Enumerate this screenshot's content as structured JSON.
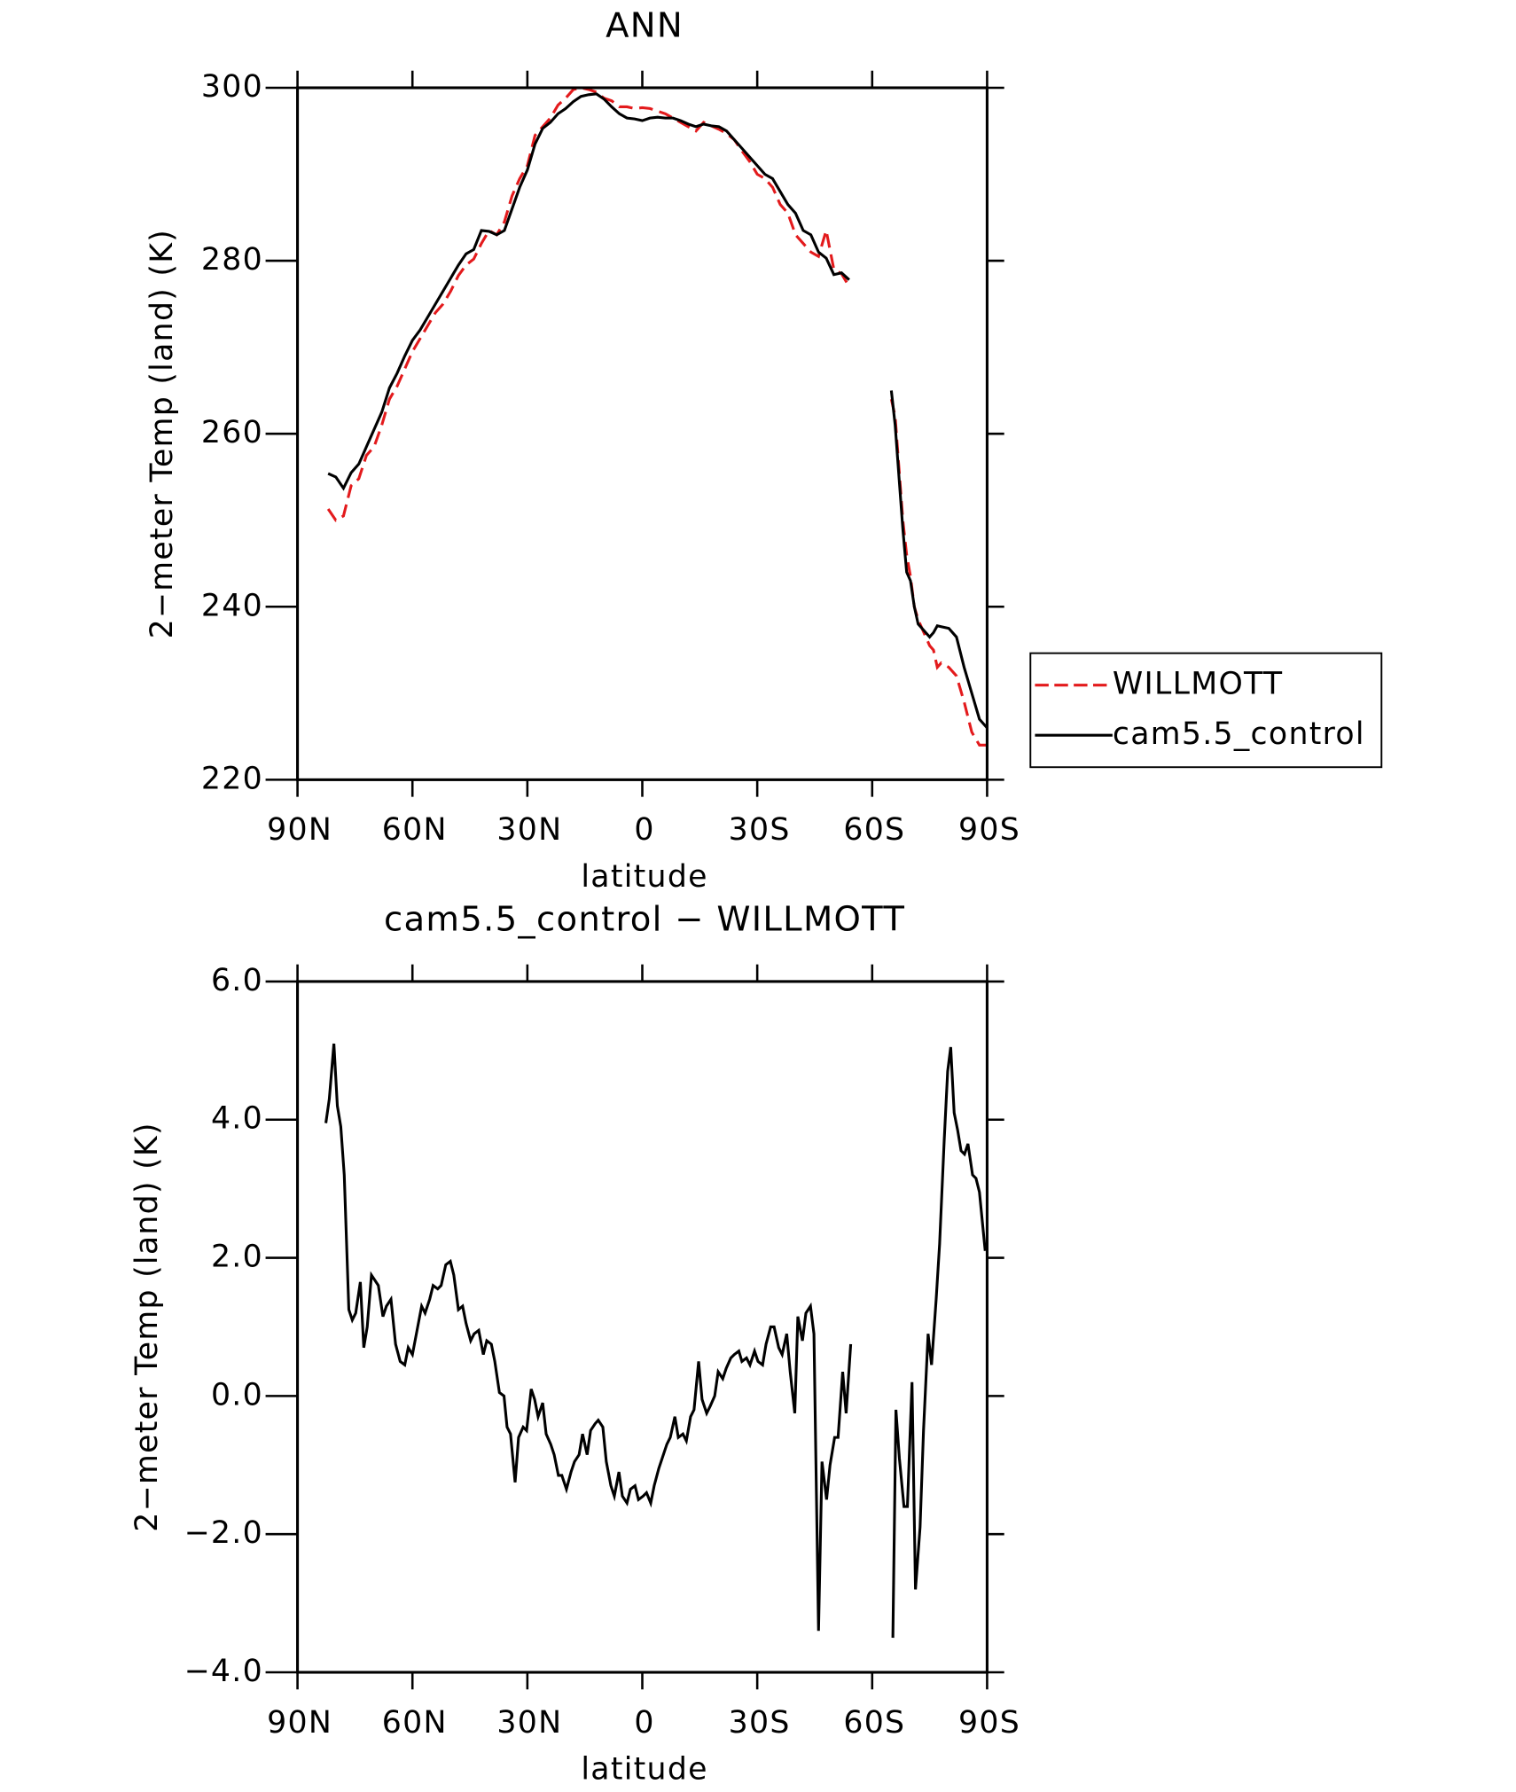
{
  "chart_data": [
    {
      "type": "line",
      "title": "ANN",
      "xlabel": "latitude",
      "ylabel": "2−meter Temp (land) (K)",
      "x": [
        82,
        80,
        78,
        76,
        74,
        72,
        70,
        68,
        66,
        64,
        62,
        60,
        58,
        56,
        54,
        52,
        50,
        48,
        46,
        44,
        42,
        40,
        38,
        36,
        34,
        32,
        30,
        28,
        26,
        24,
        22,
        20,
        18,
        16,
        14,
        12,
        10,
        8,
        6,
        4,
        2,
        0,
        -2,
        -4,
        -6,
        -8,
        -10,
        -12,
        -14,
        -16,
        -18,
        -20,
        -22,
        -24,
        -26,
        -28,
        -30,
        -32,
        -34,
        -36,
        -38,
        -40,
        -42,
        -44,
        -46,
        -48,
        -50,
        -52,
        -54,
        -60,
        -65,
        -66,
        -67,
        -68,
        -69,
        -70,
        -71,
        -72,
        -73,
        -74,
        -75,
        -76,
        -77,
        -78,
        -80,
        -82,
        -84,
        -86,
        -88,
        -90
      ],
      "series": [
        {
          "name": "WILLMOTT",
          "color": "#e31a1c",
          "linestyle": "dashed",
          "values": [
            251.3,
            250,
            250.5,
            254,
            254.8,
            257.5,
            258.5,
            261,
            264,
            265.5,
            267.5,
            269.5,
            271,
            272.5,
            274,
            275,
            276.5,
            278.3,
            279.5,
            280.2,
            282,
            283.5,
            283,
            284.5,
            287.5,
            289.5,
            291,
            294.5,
            295.5,
            296.5,
            298,
            298.8,
            299.8,
            300,
            299.8,
            299.5,
            298.8,
            298.5,
            297.8,
            297.8,
            297.6,
            297.7,
            297.6,
            297.3,
            297,
            296.5,
            296,
            295.5,
            295,
            296,
            295.6,
            295.2,
            294.7,
            294,
            292.7,
            291.5,
            290,
            289.5,
            288.5,
            286.5,
            285.5,
            283,
            282,
            281,
            280.5,
            283.5,
            279,
            278.5,
            277,
            null,
            264,
            262,
            256,
            250,
            246,
            243.5,
            240,
            238.5,
            237.5,
            236.5,
            235.5,
            235,
            233,
            233.5,
            233,
            232,
            229,
            225.5,
            224,
            224
          ]
        },
        {
          "name": "cam5.5_control",
          "color": "#000000",
          "linestyle": "solid",
          "values": [
            255.4,
            255,
            253.7,
            255.5,
            256.5,
            258.5,
            260.5,
            262.5,
            265.3,
            267,
            269,
            270.8,
            272,
            273.5,
            275,
            276.5,
            278,
            279.5,
            280.8,
            281.3,
            283.5,
            283.4,
            283,
            283.5,
            286,
            288.5,
            290.5,
            293.5,
            295.3,
            296,
            297,
            297.6,
            298.4,
            299,
            299.2,
            299.3,
            298.7,
            297.8,
            297,
            296.5,
            296.4,
            296.2,
            296.5,
            296.6,
            296.5,
            296.5,
            296.2,
            295.8,
            295.5,
            295.8,
            295.6,
            295.5,
            295,
            294,
            293,
            292,
            291,
            290,
            289.5,
            288,
            286.5,
            285.5,
            283.5,
            283,
            281,
            280.3,
            278.4,
            278.6,
            277.8,
            null,
            265,
            261,
            255,
            249,
            244,
            243,
            240,
            238,
            237.5,
            237,
            236.5,
            237,
            237.8,
            237.7,
            237.5,
            236.5,
            233,
            230,
            227,
            226
          ]
        }
      ],
      "xlim": [
        90,
        -90
      ],
      "xticks": [
        {
          "value": 90,
          "label": "90N"
        },
        {
          "value": 60,
          "label": "60N"
        },
        {
          "value": 30,
          "label": "30N"
        },
        0,
        {
          "value": -30,
          "label": "30S"
        },
        {
          "value": -60,
          "label": "60S"
        },
        {
          "value": -90,
          "label": "90S"
        }
      ],
      "ylim": [
        220,
        300
      ],
      "yticks": [
        220,
        240,
        260,
        280,
        300
      ],
      "legend": "right"
    },
    {
      "type": "line",
      "title": "cam5.5_control − WILLMOTT",
      "xlabel": "latitude",
      "ylabel": "2−meter Temp (land) (K)",
      "x": [
        82.6,
        81.7,
        80.5,
        79.6,
        78.7,
        77.8,
        76.6,
        75.7,
        74.8,
        73.6,
        72.7,
        71.8,
        70.7,
        68.9,
        67.7,
        66.8,
        65.6,
        64.4,
        63.2,
        62,
        61.1,
        60,
        58.8,
        57.6,
        56.7,
        55.5,
        54.6,
        53.4,
        52.5,
        51.3,
        50.1,
        49.2,
        48,
        46.9,
        46,
        44.8,
        43.9,
        42.7,
        41.5,
        40.6,
        39.4,
        38.5,
        37.3,
        36.1,
        35.3,
        34.4,
        33.2,
        32.3,
        31.1,
        30.2,
        29,
        28.1,
        27.2,
        26,
        25.1,
        23.9,
        23,
        21.9,
        21,
        19.8,
        18.6,
        17.7,
        16.5,
        15.6,
        14.4,
        13.5,
        12.3,
        11.5,
        10.3,
        9.4,
        8.2,
        7.3,
        6.1,
        5.2,
        4,
        3.1,
        1.9,
        1,
        -0.2,
        -1.1,
        -2.2,
        -3.1,
        -4.3,
        -5.2,
        -6.4,
        -7.3,
        -8.5,
        -9.4,
        -10.6,
        -11.5,
        -12.6,
        -13.5,
        -14.7,
        -15.6,
        -16.8,
        -17.7,
        -18.9,
        -19.8,
        -21,
        -21.9,
        -23.1,
        -24,
        -25.2,
        -26,
        -27.2,
        -28.1,
        -29.3,
        -30.2,
        -31.4,
        -32.3,
        -33.5,
        -34.4,
        -35.6,
        -36.5,
        -37.7,
        -38.6,
        -39.8,
        -40.6,
        -41.8,
        -42.7,
        -43.9,
        -44.8,
        -46,
        -46.9,
        -48.1,
        -49,
        -50.2,
        -51.1,
        -52.3,
        -53.2,
        -54.4,
        -60,
        -65.4,
        -66.2,
        -67.1,
        -68.3,
        -69.2,
        -70.4,
        -71.3,
        -72.5,
        -73.4,
        -74.6,
        -75.5,
        -76.7,
        -77.6,
        -78.8,
        -79.7,
        -80.5,
        -81.4,
        -82.3,
        -83.2,
        -84.1,
        -85,
        -86.2,
        -87.1,
        -88,
        -89.5
      ],
      "series": [
        {
          "color": "#000000",
          "linestyle": "solid",
          "values": [
            3.95,
            4.3,
            5.1,
            4.2,
            3.9,
            3.2,
            1.25,
            1.1,
            1.2,
            1.65,
            0.7,
            1.0,
            1.75,
            1.6,
            1.15,
            1.3,
            1.4,
            0.75,
            0.5,
            0.45,
            0.7,
            0.6,
            0.95,
            1.3,
            1.2,
            1.4,
            1.6,
            1.55,
            1.6,
            1.9,
            1.95,
            1.75,
            1.25,
            1.3,
            1.05,
            0.8,
            0.9,
            0.95,
            0.6,
            0.8,
            0.75,
            0.5,
            0.05,
            0.0,
            -0.45,
            -0.55,
            -1.25,
            -0.6,
            -0.45,
            -0.5,
            0.1,
            -0.05,
            -0.3,
            -0.1,
            -0.55,
            -0.7,
            -0.85,
            -1.15,
            -1.15,
            -1.35,
            -1.1,
            -0.95,
            -0.85,
            -0.55,
            -0.85,
            -0.5,
            -0.4,
            -0.35,
            -0.45,
            -0.95,
            -1.3,
            -1.45,
            -1.1,
            -1.45,
            -1.55,
            -1.35,
            -1.3,
            -1.5,
            -1.45,
            -1.4,
            -1.55,
            -1.3,
            -1.05,
            -0.9,
            -0.7,
            -0.6,
            -0.3,
            -0.6,
            -0.55,
            -0.65,
            -0.3,
            -0.2,
            0.5,
            -0.05,
            -0.25,
            -0.15,
            0.0,
            0.35,
            0.25,
            0.4,
            0.55,
            0.6,
            0.65,
            0.5,
            0.55,
            0.45,
            0.65,
            0.5,
            0.45,
            0.75,
            1.0,
            1.0,
            0.7,
            0.6,
            0.9,
            0.35,
            -0.25,
            1.15,
            0.8,
            1.2,
            1.3,
            0.9,
            -3.4,
            -0.95,
            -1.5,
            -1.0,
            -0.6,
            -0.6,
            0.35,
            -0.25,
            0.75,
            null,
            -3.5,
            -0.2,
            -0.9,
            -1.6,
            -1.6,
            0.2,
            -2.8,
            -1.9,
            -0.5,
            0.9,
            0.45,
            1.4,
            2.2,
            3.7,
            4.7,
            5.05,
            4.1,
            3.85,
            3.55,
            3.5,
            3.65,
            3.2,
            3.15,
            2.95,
            2.1
          ]
        }
      ],
      "xlim": [
        90,
        -90
      ],
      "xticks": [
        {
          "value": 90,
          "label": "90N"
        },
        {
          "value": 60,
          "label": "60N"
        },
        {
          "value": 30,
          "label": "30N"
        },
        0,
        {
          "value": -30,
          "label": "30S"
        },
        {
          "value": -60,
          "label": "60S"
        },
        {
          "value": -90,
          "label": "90S"
        }
      ],
      "ylim": [
        -4,
        6
      ],
      "yticks": [
        {
          "value": -4,
          "label": "−4.0"
        },
        {
          "value": -2,
          "label": "−2.0"
        },
        {
          "value": 0,
          "label": "0.0"
        },
        {
          "value": 2,
          "label": "2.0"
        },
        {
          "value": 4,
          "label": "4.0"
        },
        {
          "value": 6,
          "label": "6.0"
        }
      ]
    }
  ]
}
